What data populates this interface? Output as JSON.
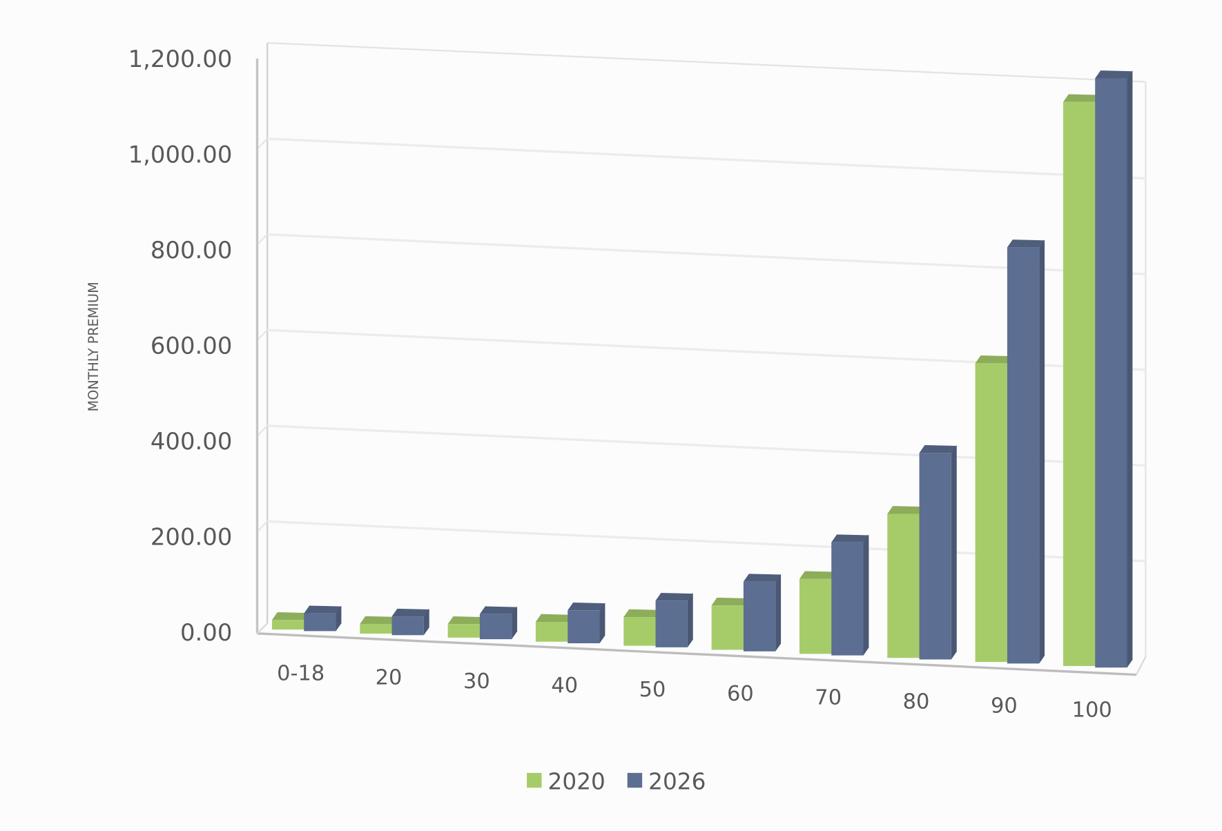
{
  "chart_data": {
    "type": "bar",
    "variant": "3d-clustered-column",
    "title": "",
    "xlabel": "",
    "ylabel": "MONTHLY PREMIUM",
    "ylim": [
      0,
      1200
    ],
    "yticks": [
      "0.00",
      "200.00",
      "400.00",
      "600.00",
      "800.00",
      "1,000.00",
      "1,200.00"
    ],
    "grid": true,
    "legend_position": "bottom",
    "categories": [
      "0-18",
      "20",
      "30",
      "40",
      "50",
      "60",
      "70",
      "80",
      "90",
      "100"
    ],
    "series": [
      {
        "name": "2020",
        "color": "#a6cc6a",
        "values": [
          20,
          20,
          28,
          41,
          59,
          91,
          153,
          293,
          605,
          1138
        ]
      },
      {
        "name": "2026",
        "color": "#5c6e91",
        "values": [
          37,
          39,
          52,
          68,
          96,
          143,
          231,
          420,
          843,
          1189
        ]
      }
    ]
  }
}
